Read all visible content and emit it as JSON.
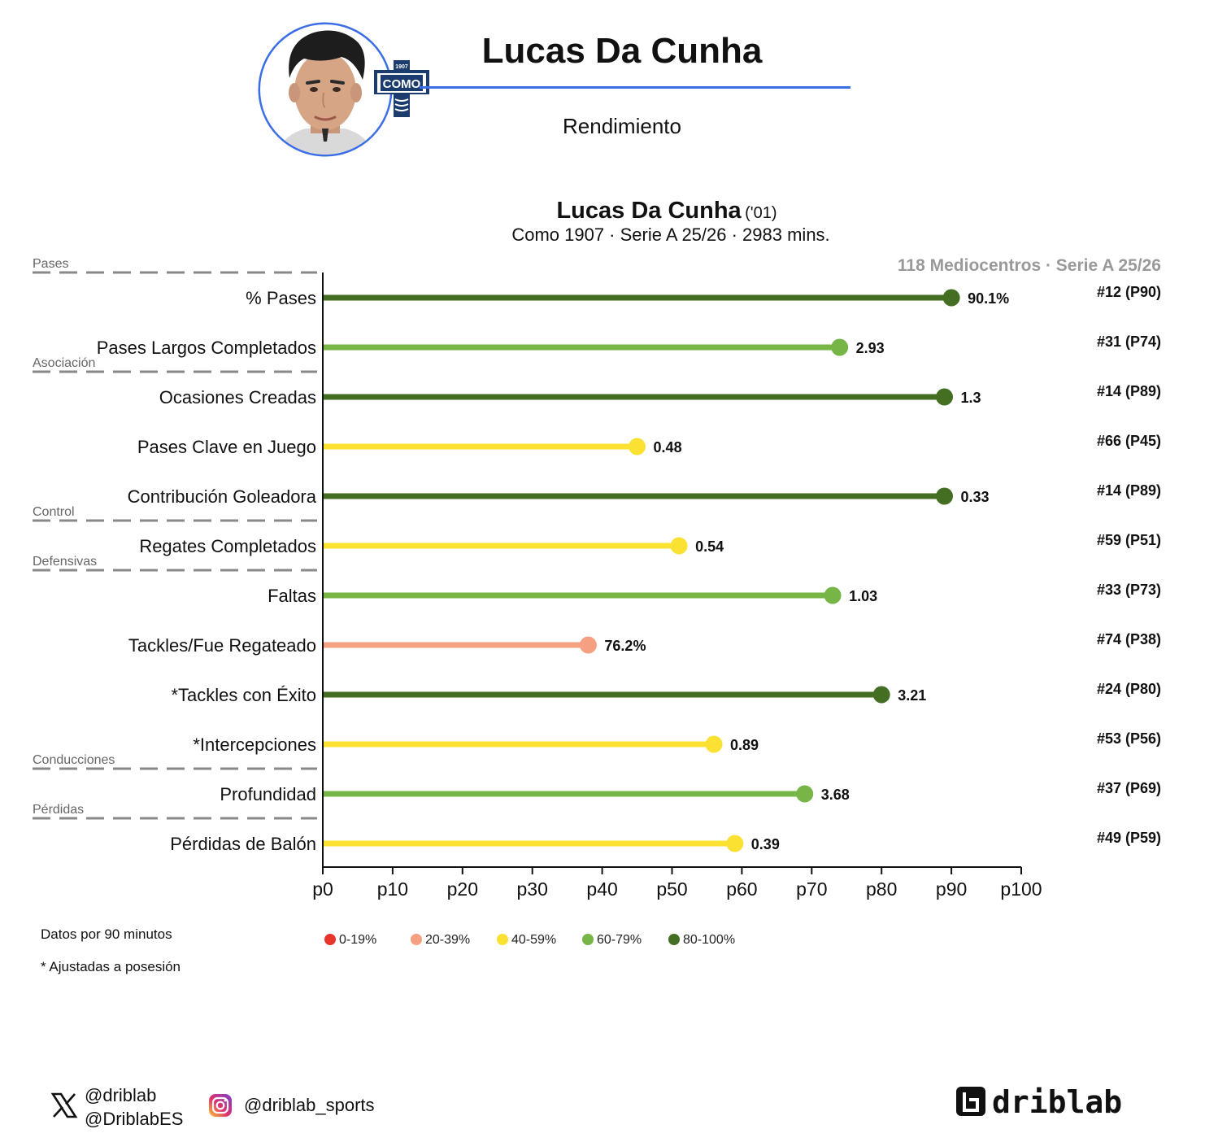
{
  "header": {
    "title": "Lucas Da Cunha",
    "subtitle": "Rendimiento",
    "club_crest_text": "COMO",
    "club_crest_year": "1907",
    "accent_color": "#3b6ee6"
  },
  "chart_title": {
    "name": "Lucas Da Cunha",
    "year": "('01)",
    "subtitle": "Como 1907 · Serie A 25/26 · 2983 mins.",
    "comparison_group": "118 Mediocentros · Serie A 25/26"
  },
  "chart_data": {
    "type": "bar",
    "orientation": "horizontal-lollipop",
    "x_axis": {
      "min": 0,
      "max": 100,
      "ticks": [
        "p0",
        "p10",
        "p20",
        "p30",
        "p40",
        "p50",
        "p60",
        "p70",
        "p80",
        "p90",
        "p100"
      ]
    },
    "sections": [
      {
        "label": "Pases",
        "after_metric": -1
      },
      {
        "label": "Asociación",
        "after_metric": 1
      },
      {
        "label": "Control",
        "after_metric": 4
      },
      {
        "label": "Defensivas",
        "after_metric": 5
      },
      {
        "label": "Conducciones",
        "after_metric": 9
      },
      {
        "label": "Pérdidas",
        "after_metric": 10
      }
    ],
    "metrics": [
      {
        "label": "% Pases",
        "percentile": 90,
        "value": "90.1%",
        "rank": "#12 (P90)"
      },
      {
        "label": "Pases Largos Completados",
        "percentile": 74,
        "value": "2.93",
        "rank": "#31 (P74)"
      },
      {
        "label": "Ocasiones Creadas",
        "percentile": 89,
        "value": "1.3",
        "rank": "#14 (P89)"
      },
      {
        "label": "Pases Clave en Juego",
        "percentile": 45,
        "value": "0.48",
        "rank": "#66 (P45)"
      },
      {
        "label": "Contribución Goleadora",
        "percentile": 89,
        "value": "0.33",
        "rank": "#14 (P89)"
      },
      {
        "label": "Regates Completados",
        "percentile": 51,
        "value": "0.54",
        "rank": "#59 (P51)"
      },
      {
        "label": "Faltas",
        "percentile": 73,
        "value": "1.03",
        "rank": "#33 (P73)"
      },
      {
        "label": "Tackles/Fue Regateado",
        "percentile": 38,
        "value": "76.2%",
        "rank": "#74 (P38)"
      },
      {
        "label": "*Tackles con Éxito",
        "percentile": 80,
        "value": "3.21",
        "rank": "#24 (P80)"
      },
      {
        "label": "*Intercepciones",
        "percentile": 56,
        "value": "0.89",
        "rank": "#53 (P56)"
      },
      {
        "label": "Profundidad",
        "percentile": 69,
        "value": "3.68",
        "rank": "#37 (P69)"
      },
      {
        "label": "Pérdidas de Balón",
        "percentile": 59,
        "value": "0.39",
        "rank": "#49 (P59)"
      }
    ],
    "legend": [
      {
        "label": "0-19%",
        "color": "#e8352b",
        "min": 0
      },
      {
        "label": "20-39%",
        "color": "#f4a081",
        "min": 20
      },
      {
        "label": "40-59%",
        "color": "#fae132",
        "min": 40
      },
      {
        "label": "60-79%",
        "color": "#76b546",
        "min": 60
      },
      {
        "label": "80-100%",
        "color": "#446f23",
        "min": 80
      }
    ],
    "section_label_color": "#666666",
    "section_line_color": "#888888"
  },
  "footer": {
    "note1": "Datos por 90 minutos",
    "note2": "* Ajustadas a posesión",
    "twitter_1": "@driblab",
    "twitter_2": "@DriblabES",
    "instagram": "@driblab_sports",
    "brand": "driblab"
  }
}
